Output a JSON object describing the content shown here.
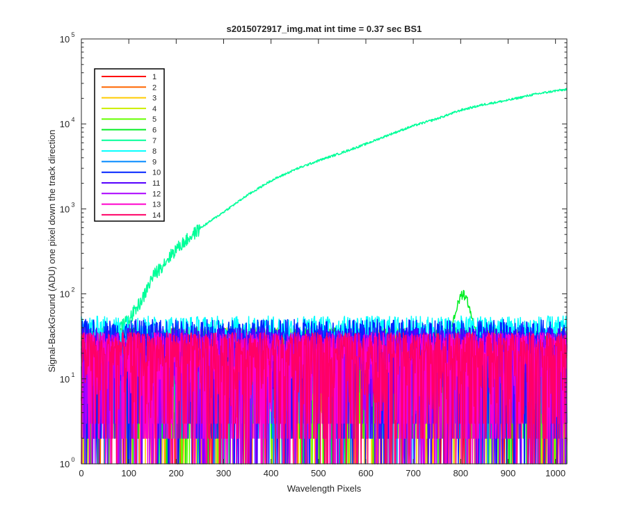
{
  "chart_data": {
    "type": "line",
    "title": "s2015072917_img.mat int time = 0.37 sec   BS1",
    "xlabel": "Wavelength Pixels",
    "ylabel": "Signal-BackGround (ADU) one pixel down the track direction",
    "xlim": [
      0,
      1024
    ],
    "ylim": [
      1,
      100000
    ],
    "yscale": "log",
    "grid": false,
    "legend_position": "top-left",
    "x_ticks": [
      0,
      100,
      200,
      300,
      400,
      500,
      600,
      700,
      800,
      900,
      1000
    ],
    "x_tick_labels": [
      "0",
      "100",
      "200",
      "300",
      "400",
      "500",
      "600",
      "700",
      "800",
      "900",
      "1000"
    ],
    "y_tick_labels": [
      {
        "base": "10",
        "exp": "0"
      },
      {
        "base": "10",
        "exp": "1"
      },
      {
        "base": "10",
        "exp": "2"
      },
      {
        "base": "10",
        "exp": "3"
      },
      {
        "base": "10",
        "exp": "4"
      },
      {
        "base": "10",
        "exp": "5"
      }
    ],
    "y_tick_values": [
      1,
      10,
      100,
      1000,
      10000,
      100000
    ],
    "series": [
      {
        "name": "1",
        "color": "#ff0000",
        "typical": 10,
        "noise_range": [
          1,
          35
        ]
      },
      {
        "name": "2",
        "color": "#ff6600",
        "typical": 10,
        "noise_range": [
          1,
          35
        ]
      },
      {
        "name": "3",
        "color": "#ffcc00",
        "typical": 10,
        "noise_range": [
          1,
          40
        ]
      },
      {
        "name": "4",
        "color": "#ccee00",
        "typical": 10,
        "noise_range": [
          1,
          40
        ]
      },
      {
        "name": "5",
        "color": "#66ff00",
        "typical": 10,
        "noise_range": [
          1,
          40
        ]
      },
      {
        "name": "6",
        "color": "#00ee22",
        "typical": 10,
        "noise_range": [
          1,
          40
        ],
        "peak": {
          "x": 805,
          "y": 110
        }
      },
      {
        "name": "7",
        "color": "#00ff99",
        "typical": 30,
        "profile": [
          {
            "x": 0,
            "y": 30
          },
          {
            "x": 70,
            "y": 35
          },
          {
            "x": 100,
            "y": 50
          },
          {
            "x": 130,
            "y": 90
          },
          {
            "x": 150,
            "y": 160
          },
          {
            "x": 200,
            "y": 340
          },
          {
            "x": 250,
            "y": 590
          },
          {
            "x": 300,
            "y": 920
          },
          {
            "x": 350,
            "y": 1450
          },
          {
            "x": 400,
            "y": 2150
          },
          {
            "x": 450,
            "y": 2900
          },
          {
            "x": 500,
            "y": 3700
          },
          {
            "x": 550,
            "y": 4600
          },
          {
            "x": 600,
            "y": 5800
          },
          {
            "x": 650,
            "y": 7500
          },
          {
            "x": 700,
            "y": 9500
          },
          {
            "x": 750,
            "y": 11500
          },
          {
            "x": 800,
            "y": 14500
          },
          {
            "x": 850,
            "y": 17000
          },
          {
            "x": 900,
            "y": 19000
          },
          {
            "x": 950,
            "y": 22000
          },
          {
            "x": 1000,
            "y": 24500
          },
          {
            "x": 1024,
            "y": 25500
          }
        ]
      },
      {
        "name": "8",
        "color": "#00ffff",
        "typical": 30,
        "noise_range": [
          20,
          55
        ]
      },
      {
        "name": "9",
        "color": "#0088ff",
        "typical": 10,
        "noise_range": [
          1,
          35
        ]
      },
      {
        "name": "10",
        "color": "#0022ff",
        "typical": 10,
        "noise_range": [
          1,
          50
        ]
      },
      {
        "name": "11",
        "color": "#5500ff",
        "typical": 10,
        "noise_range": [
          1,
          40
        ]
      },
      {
        "name": "12",
        "color": "#aa00ff",
        "typical": 10,
        "noise_range": [
          1,
          35
        ]
      },
      {
        "name": "13",
        "color": "#ff00cc",
        "typical": 10,
        "noise_range": [
          1,
          35
        ]
      },
      {
        "name": "14",
        "color": "#ff0066",
        "typical": 10,
        "noise_range": [
          1,
          35
        ]
      }
    ]
  }
}
